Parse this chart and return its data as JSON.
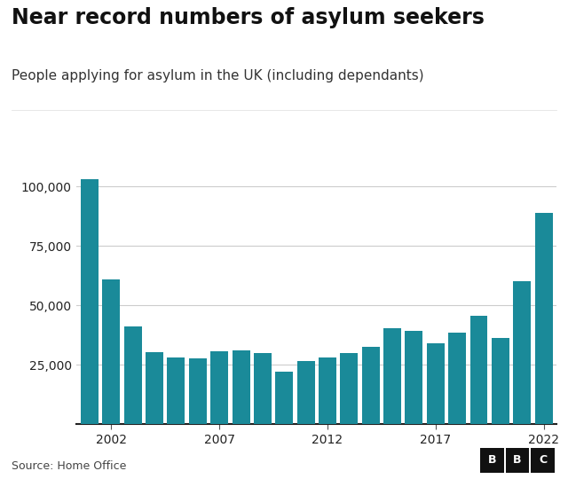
{
  "title": "Near record numbers of asylum seekers",
  "subtitle": "People applying for asylum in the UK (including dependants)",
  "source": "Source: Home Office",
  "bar_color": "#1a8a99",
  "background_color": "#ffffff",
  "years": [
    2001,
    2002,
    2003,
    2004,
    2005,
    2006,
    2007,
    2008,
    2009,
    2010,
    2011,
    2012,
    2013,
    2014,
    2015,
    2016,
    2017,
    2018,
    2019,
    2020,
    2021,
    2022
  ],
  "values": [
    103081,
    61050,
    40950,
    30330,
    27820,
    27800,
    30460,
    30820,
    29900,
    21875,
    26350,
    27850,
    29875,
    32410,
    40170,
    39225,
    34070,
    38300,
    45425,
    36040,
    60000,
    89000
  ],
  "xticks": [
    2002,
    2007,
    2012,
    2017,
    2022
  ],
  "yticks": [
    0,
    25000,
    50000,
    75000,
    100000
  ],
  "ylim": [
    0,
    112000
  ],
  "title_fontsize": 17,
  "subtitle_fontsize": 11,
  "source_fontsize": 9,
  "tick_fontsize": 10,
  "grid_color": "#cccccc",
  "text_color": "#222222",
  "source_color": "#444444"
}
